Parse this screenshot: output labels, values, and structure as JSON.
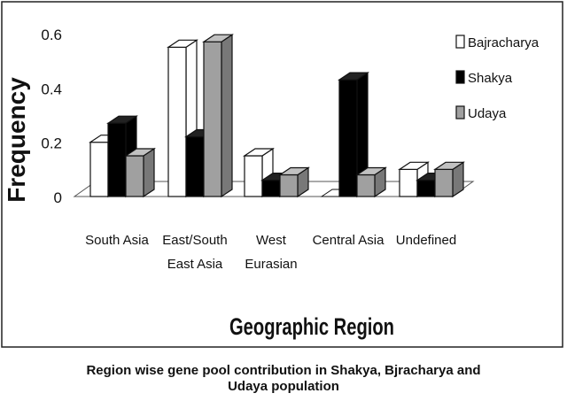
{
  "chart_data": {
    "type": "bar",
    "ylabel": "Frequency",
    "xlabel": "Geographic Region",
    "categories": [
      [
        "South Asia"
      ],
      [
        "East/South",
        "East Asia"
      ],
      [
        "West",
        "Eurasian"
      ],
      [
        "Central Asia"
      ],
      [
        "Undefined"
      ]
    ],
    "series": [
      {
        "name": "Bajracharya",
        "values": [
          0.2,
          0.55,
          0.15,
          0.0,
          0.1
        ]
      },
      {
        "name": "Shakya",
        "values": [
          0.27,
          0.22,
          0.06,
          0.43,
          0.06
        ]
      },
      {
        "name": "Udaya",
        "values": [
          0.15,
          0.57,
          0.08,
          0.08,
          0.1
        ]
      }
    ],
    "yticks": [
      "0",
      "0.2",
      "0.4",
      "0.6"
    ],
    "ylim": [
      0,
      0.6
    ],
    "grid": false,
    "legend_position": "right",
    "colors": {
      "Bajracharya": "#ffffff",
      "Shakya": "#000000",
      "Udaya": "#a0a0a0"
    }
  },
  "caption": {
    "line1": "Region wise gene pool contribution in Shakya, Bjracharya and",
    "line2": "Udaya population"
  }
}
